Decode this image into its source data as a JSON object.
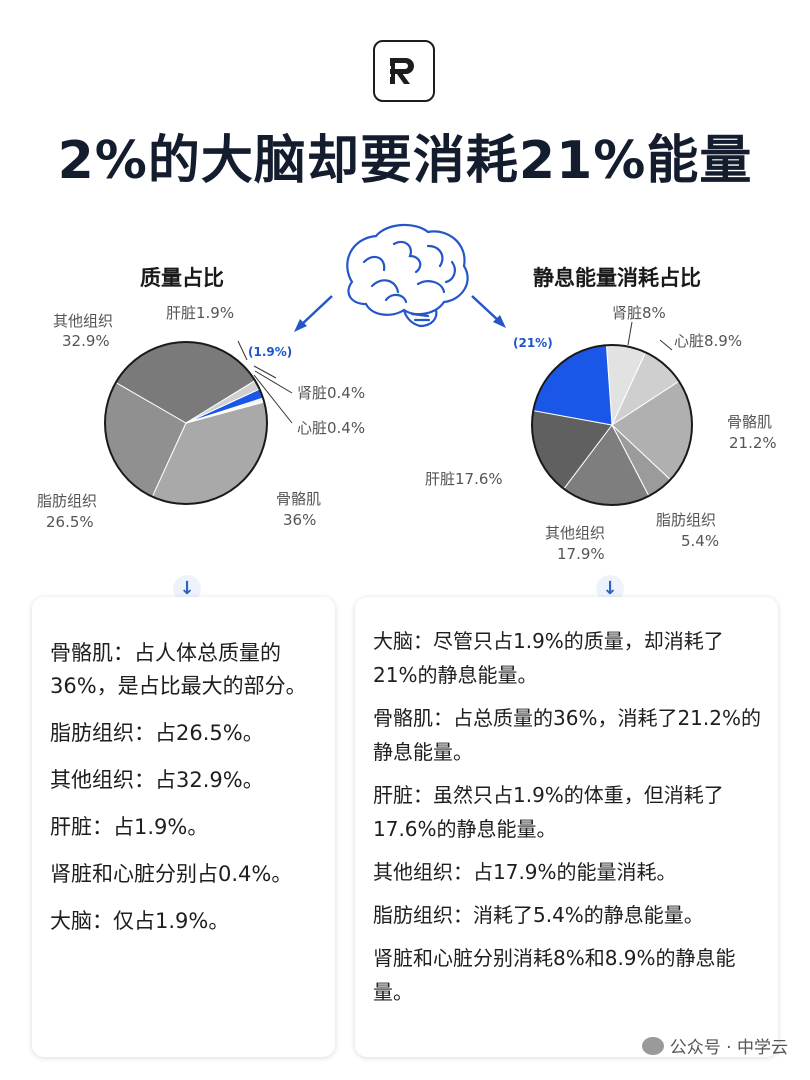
{
  "header": {
    "logo_letter": "R",
    "title": "2%的大脑却要消耗21%能量"
  },
  "chart_data": [
    {
      "type": "pie",
      "title": "质量占比",
      "slices": [
        {
          "name": "骨骼肌",
          "value": 36,
          "label": "36%",
          "color": "#a9a9a9"
        },
        {
          "name": "脂肪组织",
          "value": 26.5,
          "label": "26.5%",
          "color": "#909090"
        },
        {
          "name": "其他组织",
          "value": 32.9,
          "label": "32.9%",
          "color": "#7a7a7a"
        },
        {
          "name": "肝脏",
          "value": 1.9,
          "label": "1.9%",
          "color": "#d0d0d0"
        },
        {
          "name": "大脑",
          "value": 1.9,
          "label": "(1.9%)",
          "color": "#1a56e8"
        },
        {
          "name": "肾脏",
          "value": 0.4,
          "label": "0.4%",
          "color": "#e6e6e6"
        },
        {
          "name": "心脏",
          "value": 0.4,
          "label": "0.4%",
          "color": "#f0f0f0"
        }
      ]
    },
    {
      "type": "pie",
      "title": "静息能量消耗占比",
      "slices": [
        {
          "name": "肾脏",
          "value": 8,
          "label": "8%",
          "color": "#e2e2e2"
        },
        {
          "name": "心脏",
          "value": 8.9,
          "label": "8.9%",
          "color": "#cfcfcf"
        },
        {
          "name": "骨骼肌",
          "value": 21.2,
          "label": "21.2%",
          "color": "#b0b0b0"
        },
        {
          "name": "脂肪组织",
          "value": 5.4,
          "label": "5.4%",
          "color": "#9b9b9b"
        },
        {
          "name": "其他组织",
          "value": 17.9,
          "label": "17.9%",
          "color": "#7e7e7e"
        },
        {
          "name": "肝脏",
          "value": 17.6,
          "label": "17.6%",
          "color": "#606060"
        },
        {
          "name": "大脑",
          "value": 21,
          "label": "(21%)",
          "color": "#1a56e8"
        }
      ]
    }
  ],
  "labels": {
    "left": {
      "liver": "肝脏1.9%",
      "other": [
        "其他组织",
        "32.9%"
      ],
      "brain": "(1.9%)",
      "kidney": "肾脏0.4%",
      "heart": "心脏0.4%",
      "fat": [
        "脂肪组织",
        "26.5%"
      ],
      "muscle": [
        "骨骼肌",
        "36%"
      ]
    },
    "right": {
      "brain": "(21%)",
      "kidney": "肾脏8%",
      "heart": "心脏8.9%",
      "muscle": [
        "骨骼肌",
        "21.2%"
      ],
      "liver": "肝脏17.6%",
      "other": [
        "其他组织",
        "17.9%"
      ],
      "fat": [
        "脂肪组织",
        "5.4%"
      ]
    }
  },
  "cards": {
    "left": [
      "骨骼肌：占人体总质量的36%，是占比最大的部分。",
      "脂肪组织：占26.5%。",
      "其他组织：占32.9%。",
      "肝脏：占1.9%。",
      "肾脏和心脏分别占0.4%。",
      "大脑：仅占1.9%。"
    ],
    "right": [
      "大脑：尽管只占1.9%的质量，却消耗了21%的静息能量。",
      "骨骼肌：占总质量的36%，消耗了21.2%的静息能量。",
      "肝脏：虽然只占1.9%的体重，但消耗了17.6%的静息能量。",
      "其他组织：占17.9%的能量消耗。",
      "脂肪组织：消耗了5.4%的静息能量。",
      "肾脏和心脏分别消耗8%和8.9%的静息能量。"
    ]
  },
  "arrow_icon": "↓",
  "watermark": "公众号 · 中学云",
  "colors": {
    "accent": "#1a56e8",
    "title": "#141d2e"
  }
}
